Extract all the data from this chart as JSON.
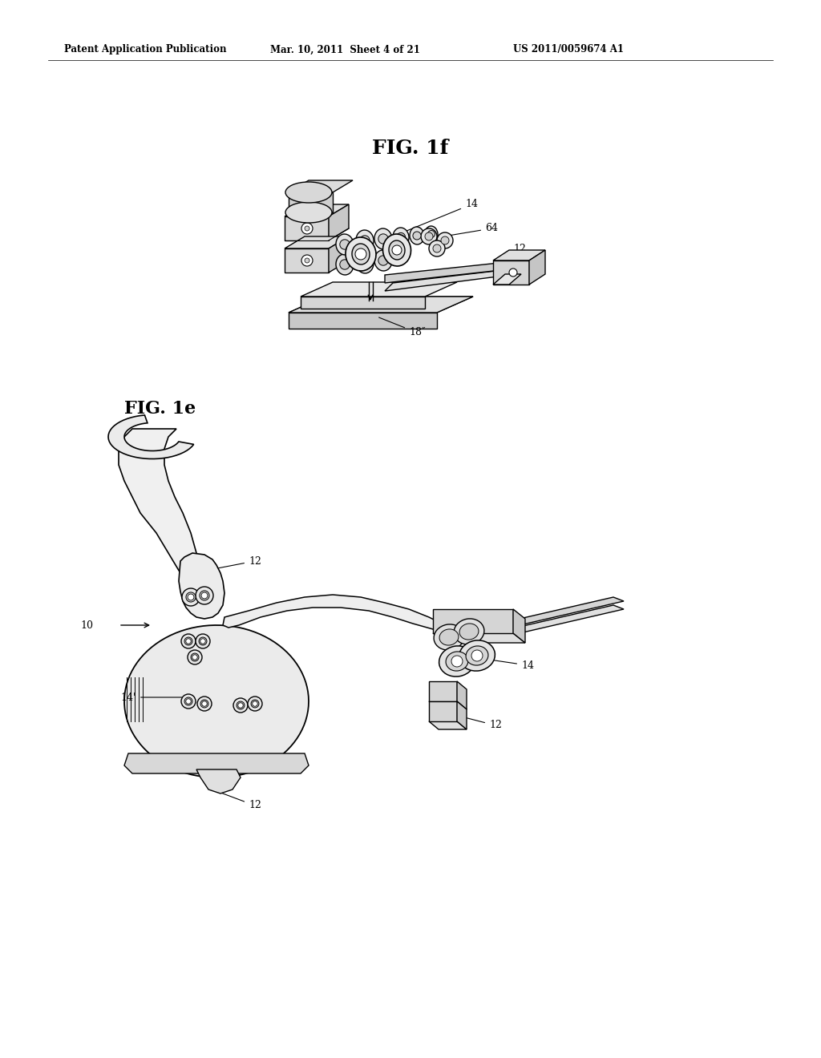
{
  "bg_color": "#ffffff",
  "page_width": 10.24,
  "page_height": 13.2,
  "header_text_left": "Patent Application Publication",
  "header_text_mid": "Mar. 10, 2011  Sheet 4 of 21",
  "header_text_right": "US 2011/0059674 A1",
  "text_color": "#000000",
  "line_color": "#000000",
  "line_width": 1.0,
  "fig1f_title": "FIG. 1f",
  "fig1e_label": "FIG. 1e"
}
